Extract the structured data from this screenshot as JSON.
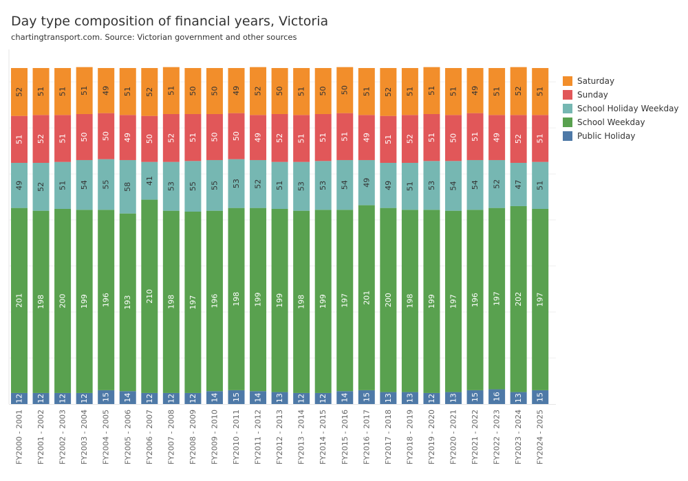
{
  "chart_data": {
    "type": "bar",
    "stacked": true,
    "title": "Day type composition of financial years, Victoria",
    "subtitle": "chartingtransport.com. Source: Victorian government and other sources",
    "xlabel": "",
    "ylabel": "",
    "ylim": [
      0,
      366
    ],
    "grid": true,
    "legend_position": "right",
    "categories": [
      "FY2000 - 2001",
      "FY2001 - 2002",
      "FY2002 - 2003",
      "FY2003 - 2004",
      "FY2004 - 2005",
      "FY2005 - 2006",
      "FY2006 - 2007",
      "FY2007 - 2008",
      "FY2008 - 2009",
      "FY2009 - 2010",
      "FY2010 - 2011",
      "FY2011 - 2012",
      "FY2012 - 2013",
      "FY2013 - 2014",
      "FY2014 - 2015",
      "FY2015 - 2016",
      "FY2016 - 2017",
      "FY2017 - 2018",
      "FY2018 - 2019",
      "FY2019 - 2020",
      "FY2020 - 2021",
      "FY2021 - 2022",
      "FY2022 - 2023",
      "FY2023 - 2024",
      "FY2024 - 2025"
    ],
    "series": [
      {
        "name": "Public Holiday",
        "color": "#4e79a7",
        "label_color": "#ffffff",
        "values": [
          12,
          12,
          12,
          12,
          15,
          14,
          12,
          12,
          12,
          14,
          15,
          14,
          13,
          12,
          12,
          14,
          15,
          13,
          13,
          12,
          13,
          15,
          16,
          13,
          15
        ]
      },
      {
        "name": "School Weekday",
        "color": "#59a14f",
        "label_color": "#ffffff",
        "values": [
          201,
          198,
          200,
          199,
          196,
          193,
          210,
          198,
          197,
          196,
          198,
          199,
          199,
          198,
          199,
          197,
          201,
          200,
          198,
          199,
          197,
          196,
          197,
          202,
          197
        ]
      },
      {
        "name": "School Holiday Weekday",
        "color": "#76b7b2",
        "label_color": "#333333",
        "values": [
          49,
          52,
          51,
          54,
          55,
          58,
          41,
          53,
          55,
          55,
          53,
          52,
          51,
          53,
          53,
          54,
          49,
          49,
          51,
          53,
          54,
          54,
          52,
          47,
          51
        ]
      },
      {
        "name": "Sunday",
        "color": "#e15759",
        "label_color": "#ffffff",
        "values": [
          51,
          52,
          51,
          50,
          50,
          49,
          50,
          52,
          51,
          50,
          50,
          49,
          52,
          51,
          51,
          51,
          49,
          51,
          52,
          51,
          50,
          51,
          49,
          52,
          51
        ]
      },
      {
        "name": "Saturday",
        "color": "#f28e2b",
        "label_color": "#333333",
        "values": [
          52,
          51,
          51,
          51,
          49,
          51,
          52,
          51,
          50,
          50,
          49,
          52,
          50,
          51,
          50,
          50,
          51,
          52,
          51,
          51,
          51,
          49,
          51,
          52,
          51
        ]
      }
    ],
    "legend_order": [
      "Saturday",
      "Sunday",
      "School Holiday Weekday",
      "School Weekday",
      "Public Holiday"
    ]
  }
}
